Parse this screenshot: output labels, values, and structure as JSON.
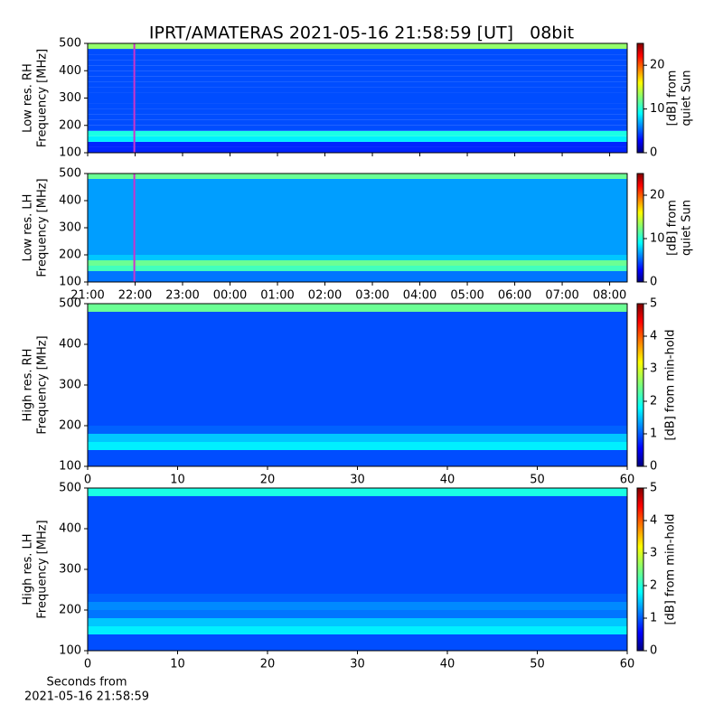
{
  "chart_data": [
    {
      "type": "heatmap",
      "title": "IPRT/AMATERAS 2021-05-16 21:58:59 [UT]   08bit",
      "ylabel": [
        "Low res. RH",
        "Frequency [MHz]"
      ],
      "ylim": [
        100,
        500
      ],
      "yticks": [
        100,
        200,
        300,
        400,
        500
      ],
      "xlim": [
        0,
        11.37
      ],
      "xticks": [
        0,
        1,
        2,
        3,
        4,
        5,
        6,
        7,
        8,
        9,
        10,
        11
      ],
      "ybins": [
        100,
        120,
        140,
        160,
        180,
        200,
        220,
        240,
        260,
        280,
        300,
        320,
        340,
        360,
        380,
        400,
        420,
        440,
        460,
        480,
        500
      ],
      "z": [
        4,
        4,
        9,
        10,
        5,
        5,
        5,
        5,
        5,
        5,
        5,
        5,
        5,
        5,
        5,
        5,
        5,
        5,
        5,
        13
      ],
      "colormap": "jet",
      "clim": [
        0,
        25
      ],
      "cticks": [
        0,
        10,
        20
      ],
      "clabel": [
        "[dB] from",
        "quiet Sun"
      ],
      "marker_x": 0.983,
      "marker_color": "#cc33cc"
    },
    {
      "type": "heatmap",
      "ylabel": [
        "Low res. LH",
        "Frequency [MHz]"
      ],
      "ylim": [
        100,
        500
      ],
      "yticks": [
        100,
        200,
        300,
        400,
        500
      ],
      "xlim": [
        0,
        11.37
      ],
      "xticks": [
        {
          "value": 0,
          "label": "21:00"
        },
        {
          "value": 1,
          "label": "22:00"
        },
        {
          "value": 2,
          "label": "23:00"
        },
        {
          "value": 3,
          "label": "00:00"
        },
        {
          "value": 4,
          "label": "01:00"
        },
        {
          "value": 5,
          "label": "02:00"
        },
        {
          "value": 6,
          "label": "03:00"
        },
        {
          "value": 7,
          "label": "04:00"
        },
        {
          "value": 8,
          "label": "05:00"
        },
        {
          "value": 9,
          "label": "06:00"
        },
        {
          "value": 10,
          "label": "07:00"
        },
        {
          "value": 11,
          "label": "08:00"
        }
      ],
      "ybins": [
        100,
        120,
        140,
        160,
        180,
        200,
        220,
        240,
        260,
        280,
        300,
        320,
        340,
        360,
        380,
        400,
        420,
        440,
        460,
        480,
        500
      ],
      "z": [
        6,
        6,
        11,
        12,
        8,
        7,
        7,
        7,
        7,
        7,
        7,
        7,
        7,
        7,
        7,
        7,
        7,
        7,
        7,
        12
      ],
      "colormap": "jet",
      "clim": [
        0,
        25
      ],
      "cticks": [
        0,
        10,
        20
      ],
      "clabel": [
        "[dB] from",
        "quiet Sun"
      ],
      "marker_x": 0.983,
      "marker_color": "#cc33cc"
    },
    {
      "type": "heatmap",
      "ylabel": [
        "High res. RH",
        "Frequency [MHz]"
      ],
      "ylim": [
        100,
        500
      ],
      "yticks": [
        100,
        200,
        300,
        400,
        500
      ],
      "xlim": [
        0,
        60
      ],
      "xticks": [
        0,
        10,
        20,
        30,
        40,
        50,
        60
      ],
      "ybins": [
        100,
        120,
        140,
        160,
        180,
        200,
        220,
        240,
        260,
        280,
        300,
        320,
        340,
        360,
        380,
        400,
        420,
        440,
        460,
        480,
        500
      ],
      "z": [
        1,
        1,
        1.8,
        1.6,
        1.1,
        1,
        1,
        1,
        1,
        1,
        1,
        1,
        1,
        1,
        1,
        1,
        1,
        1,
        1,
        2.4
      ],
      "colormap": "jet",
      "clim": [
        0,
        5
      ],
      "cticks": [
        0,
        1,
        2,
        3,
        4,
        5
      ],
      "clabel": [
        "[dB] from min-hold"
      ]
    },
    {
      "type": "heatmap",
      "ylabel": [
        "High res. LH",
        "Frequency [MHz]"
      ],
      "ylim": [
        100,
        500
      ],
      "yticks": [
        100,
        200,
        300,
        400,
        500
      ],
      "xlim": [
        0,
        60
      ],
      "xticks": [
        0,
        10,
        20,
        30,
        40,
        50,
        60
      ],
      "xlabel": [
        "Seconds from",
        "2021-05-16 21:58:59"
      ],
      "ybins": [
        100,
        120,
        140,
        160,
        180,
        200,
        220,
        240,
        260,
        280,
        300,
        320,
        340,
        360,
        380,
        400,
        420,
        440,
        460,
        480,
        500
      ],
      "z": [
        1,
        1,
        1.8,
        1.6,
        1.2,
        1.3,
        1.1,
        1,
        1,
        1,
        1,
        1,
        1,
        1,
        1,
        1,
        1,
        1,
        1,
        2
      ],
      "colormap": "jet",
      "clim": [
        0,
        5
      ],
      "cticks": [
        0,
        1,
        2,
        3,
        4,
        5
      ],
      "clabel": [
        "[dB] from min-hold"
      ]
    }
  ]
}
